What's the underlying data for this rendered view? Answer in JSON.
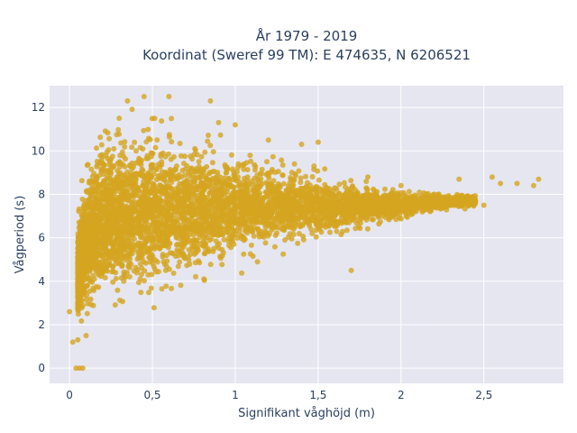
{
  "chart_data": {
    "type": "scatter",
    "title": "År 1979 - 2019",
    "subtitle": "Koordinat (Sweref 99 TM): E 474635, N 6206521",
    "xlabel": "Signifikant våghöjd (m)",
    "ylabel": "Vågperiod (s)",
    "xlim": [
      -0.12,
      2.98
    ],
    "ylim": [
      -0.7,
      13.0
    ],
    "x_ticks": [
      0,
      0.5,
      1,
      1.5,
      2,
      2.5
    ],
    "x_tick_labels": [
      "0",
      "0,5",
      "1",
      "1,5",
      "2",
      "2,5"
    ],
    "y_ticks": [
      0,
      2,
      4,
      6,
      8,
      10,
      12
    ],
    "y_tick_labels": [
      "0",
      "2",
      "4",
      "6",
      "8",
      "10",
      "12"
    ],
    "grid": true,
    "marker_color": "#d4a521",
    "plot_background": "#e5e6f0",
    "envelope": {
      "description_points_lower": [
        [
          0.05,
          1.2
        ],
        [
          0.2,
          1.6
        ],
        [
          0.4,
          2.1
        ],
        [
          0.6,
          2.6
        ],
        [
          0.8,
          3.3
        ],
        [
          1.0,
          4.0
        ],
        [
          1.2,
          4.6
        ],
        [
          1.4,
          5.2
        ],
        [
          1.6,
          5.7
        ],
        [
          1.8,
          6.2
        ],
        [
          2.0,
          6.6
        ],
        [
          2.2,
          7.0
        ],
        [
          2.4,
          7.3
        ]
      ],
      "description_points_upper": [
        [
          0.05,
          7.5
        ],
        [
          0.1,
          10.5
        ],
        [
          0.2,
          12.2
        ],
        [
          0.5,
          12.4
        ],
        [
          0.8,
          11.5
        ],
        [
          1.0,
          11.0
        ],
        [
          1.2,
          10.5
        ],
        [
          1.4,
          9.8
        ],
        [
          1.6,
          9.2
        ],
        [
          1.8,
          8.8
        ],
        [
          2.0,
          8.5
        ],
        [
          2.2,
          8.3
        ],
        [
          2.4,
          8.1
        ]
      ]
    },
    "sample_points": [
      [
        0.0,
        2.6
      ],
      [
        0.02,
        1.2
      ],
      [
        0.05,
        1.3
      ],
      [
        0.04,
        0.0
      ],
      [
        0.06,
        0.0
      ],
      [
        0.08,
        0.0
      ],
      [
        0.1,
        1.5
      ],
      [
        0.15,
        5.0
      ],
      [
        0.2,
        7.0
      ],
      [
        0.25,
        9.0
      ],
      [
        0.3,
        11.5
      ],
      [
        0.35,
        12.3
      ],
      [
        0.45,
        12.5
      ],
      [
        0.6,
        12.5
      ],
      [
        0.85,
        12.3
      ],
      [
        0.9,
        11.3
      ],
      [
        1.0,
        11.2
      ],
      [
        1.2,
        10.5
      ],
      [
        1.4,
        10.3
      ],
      [
        1.5,
        10.4
      ],
      [
        1.6,
        8.3
      ],
      [
        1.8,
        8.8
      ],
      [
        1.7,
        4.5
      ],
      [
        2.0,
        8.4
      ],
      [
        2.2,
        8.0
      ],
      [
        2.35,
        8.7
      ],
      [
        2.5,
        7.5
      ],
      [
        2.6,
        8.5
      ],
      [
        2.7,
        8.5
      ],
      [
        2.83,
        8.7
      ],
      [
        2.8,
        8.4
      ],
      [
        2.55,
        8.8
      ]
    ]
  }
}
